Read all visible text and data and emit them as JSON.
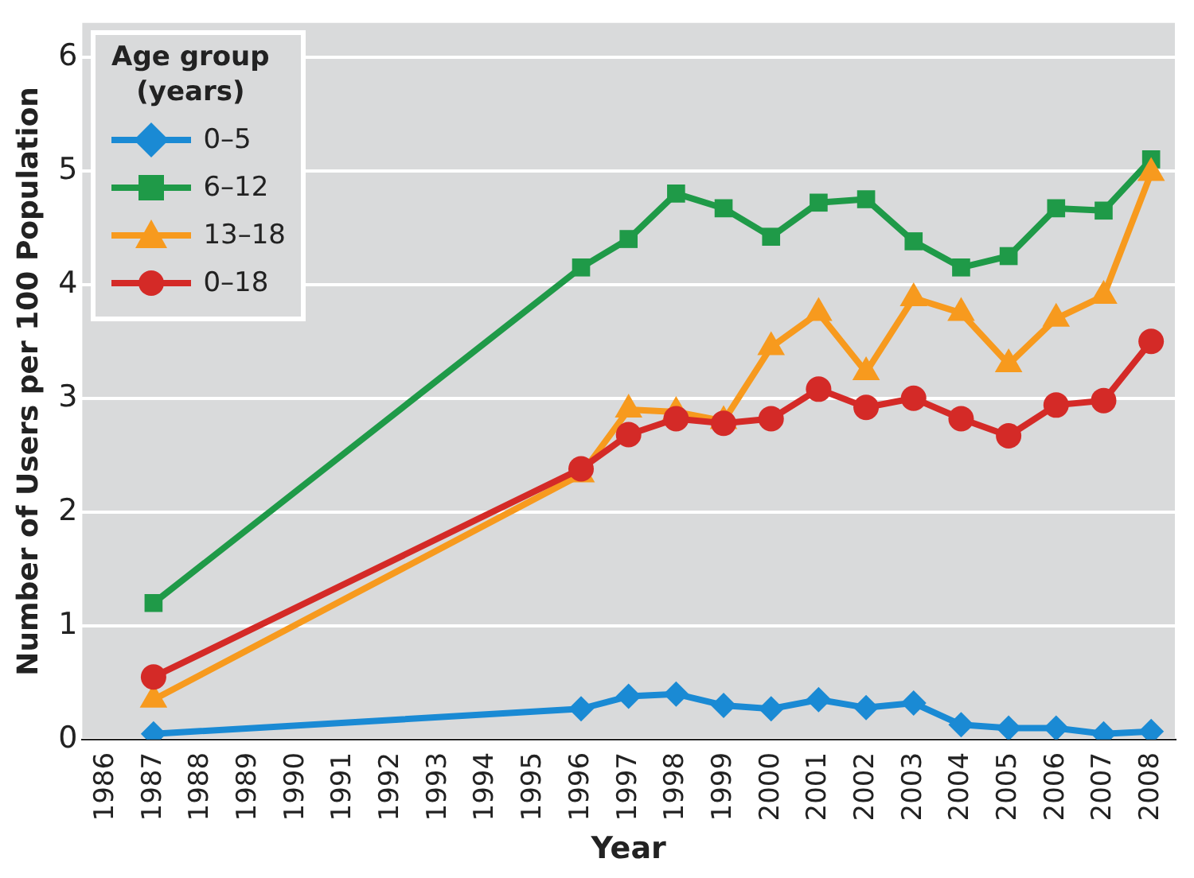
{
  "chart_data": {
    "type": "line",
    "xlabel": "Year",
    "ylabel": "Number of Users per 100 Population",
    "legend_title": "Age group (years)",
    "legend": "top left",
    "grid": "y",
    "x": [
      1987,
      1996,
      1997,
      1998,
      1999,
      2000,
      2001,
      2002,
      2003,
      2004,
      2005,
      2006,
      2007,
      2008
    ],
    "xlim": [
      1985.5,
      2008.5
    ],
    "xticks": [
      1986,
      1987,
      1988,
      1989,
      1990,
      1991,
      1992,
      1993,
      1994,
      1995,
      1996,
      1997,
      1998,
      1999,
      2000,
      2001,
      2002,
      2003,
      2004,
      2005,
      2006,
      2007,
      2008
    ],
    "ylim": [
      0,
      6.3
    ],
    "yticks": [
      0,
      1,
      2,
      3,
      4,
      5,
      6
    ],
    "series": [
      {
        "name": "0–5",
        "color": "#1a8ad4",
        "marker": "diamond",
        "values": [
          0.05,
          0.27,
          0.38,
          0.4,
          0.3,
          0.27,
          0.35,
          0.28,
          0.32,
          0.13,
          0.1,
          0.1,
          0.05,
          0.07
        ]
      },
      {
        "name": "6–12",
        "color": "#1f9a48",
        "marker": "square",
        "values": [
          1.2,
          4.15,
          4.4,
          4.8,
          4.67,
          4.42,
          4.72,
          4.75,
          4.38,
          4.15,
          4.25,
          4.67,
          4.65,
          5.1
        ]
      },
      {
        "name": "13–18",
        "color": "#f79a1e",
        "marker": "triangle",
        "values": [
          0.35,
          2.33,
          2.9,
          2.88,
          2.8,
          3.45,
          3.75,
          3.23,
          3.88,
          3.75,
          3.3,
          3.7,
          3.9,
          4.98
        ]
      },
      {
        "name": "0–18",
        "color": "#d42a27",
        "marker": "circle",
        "values": [
          0.55,
          2.38,
          2.68,
          2.82,
          2.78,
          2.82,
          3.08,
          2.92,
          3.0,
          2.82,
          2.67,
          2.94,
          2.98,
          3.5
        ]
      }
    ]
  }
}
